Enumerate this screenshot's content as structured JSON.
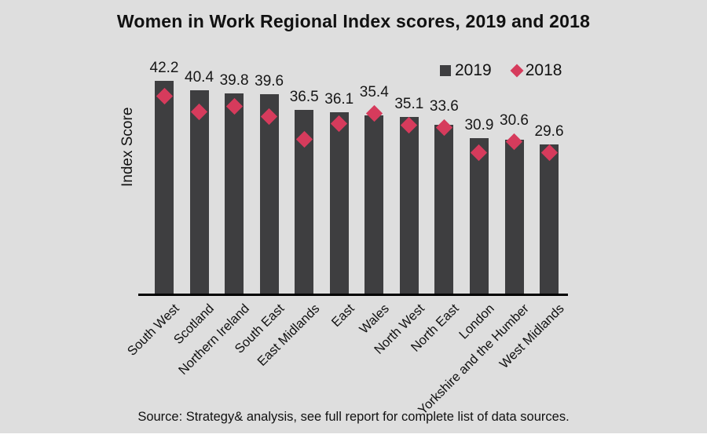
{
  "title": "Women in Work Regional Index scores, 2019 and 2018",
  "legend": {
    "items": [
      {
        "label": "2019",
        "marker": "square",
        "color": "#3e3e40"
      },
      {
        "label": "2018",
        "marker": "diamond",
        "color": "#d63b5c"
      }
    ]
  },
  "ylabel": "Index Score",
  "source": "Source: Strategy& analysis, see full report for complete list of data sources.",
  "colors": {
    "background": "#dedede",
    "bar": "#3e3e40",
    "diamond": "#d63b5c",
    "axis": "#000000",
    "text": "#111111"
  },
  "chart_data": {
    "type": "bar",
    "title": "Women in Work Regional Index scores, 2019 and 2018",
    "xlabel": "",
    "ylabel": "Index Score",
    "ylim": [
      0,
      45
    ],
    "grid": false,
    "legend_position": "top-right",
    "categories": [
      "South West",
      "Scotland",
      "Northern Ireland",
      "South East",
      "East Midlands",
      "East",
      "Wales",
      "North West",
      "North East",
      "London",
      "Yorkshire and the Humber",
      "West Midlands"
    ],
    "series": [
      {
        "name": "2019",
        "style": "bar",
        "color": "#3e3e40",
        "values": [
          42.2,
          40.4,
          39.8,
          39.6,
          36.5,
          36.1,
          35.4,
          35.1,
          33.6,
          30.9,
          30.6,
          29.6
        ]
      },
      {
        "name": "2018",
        "style": "diamond-marker",
        "color": "#d63b5c",
        "values": [
          39.2,
          36.1,
          37.2,
          35.1,
          30.6,
          33.8,
          35.8,
          33.5,
          33.0,
          28.1,
          30.2,
          28.1
        ]
      }
    ],
    "value_labels_for_series": "2019"
  }
}
